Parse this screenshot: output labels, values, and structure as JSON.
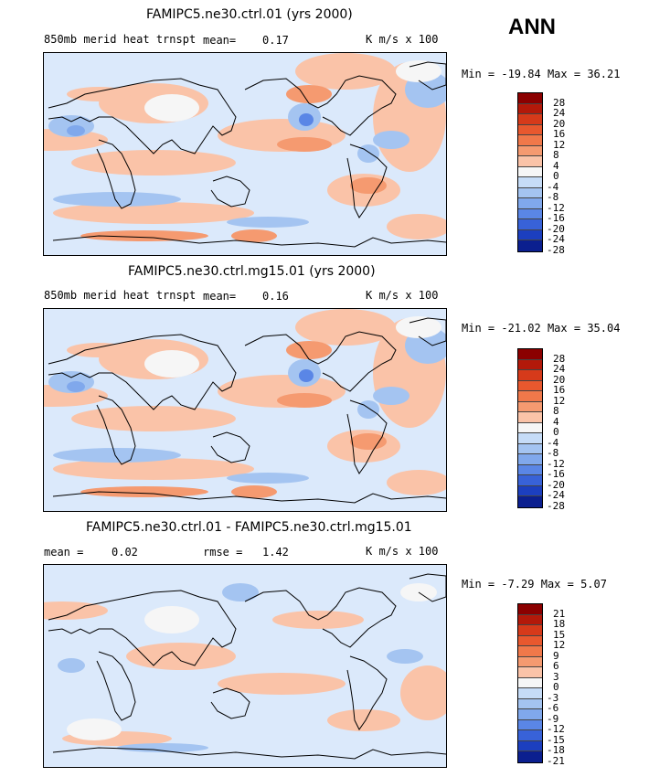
{
  "season": "ANN",
  "panels": [
    {
      "title": "FAMIPC5.ne30.ctrl.01 (yrs 2000)",
      "left_label": "850mb merid heat trnspt",
      "mid_label": "mean=",
      "mid_value": "0.17",
      "units": "K m/s x 100",
      "min_label": "Min =",
      "min_value": "-19.84",
      "max_label": "Max =",
      "max_value": "36.21",
      "levels": [
        "28",
        "24",
        "20",
        "16",
        "12",
        "8",
        "4",
        "0",
        "-4",
        "-8",
        "-12",
        "-16",
        "-20",
        "-24",
        "-28"
      ]
    },
    {
      "title": "FAMIPC5.ne30.ctrl.mg15.01 (yrs 2000)",
      "left_label": "850mb merid heat trnspt",
      "mid_label": "mean=",
      "mid_value": "0.16",
      "units": "K m/s x 100",
      "min_label": "Min =",
      "min_value": "-21.02",
      "max_label": "Max =",
      "max_value": "35.04",
      "levels": [
        "28",
        "24",
        "20",
        "16",
        "12",
        "8",
        "4",
        "0",
        "-4",
        "-8",
        "-12",
        "-16",
        "-20",
        "-24",
        "-28"
      ]
    },
    {
      "title": "FAMIPC5.ne30.ctrl.01 - FAMIPC5.ne30.ctrl.mg15.01",
      "left_label": "mean =",
      "left_value": "0.02",
      "mid_label": "rmse =",
      "mid_value": "1.42",
      "units": "K m/s x 100",
      "min_label": "Min =",
      "min_value": "-7.29",
      "max_label": "Max =",
      "max_value": "5.07",
      "levels": [
        "21",
        "18",
        "15",
        "12",
        "9",
        "6",
        "3",
        "0",
        "-3",
        "-6",
        "-9",
        "-12",
        "-15",
        "-18",
        "-21"
      ]
    }
  ],
  "colors": {
    "palette": [
      "#8b0000",
      "#b3190a",
      "#d63a1a",
      "#e8582e",
      "#f0784a",
      "#f59a70",
      "#fac3a8",
      "#f6f6f6",
      "#c6dcf7",
      "#a4c4f1",
      "#80a8ec",
      "#5a86e6",
      "#3862d8",
      "#1c3fbf",
      "#0b1f8f"
    ]
  }
}
